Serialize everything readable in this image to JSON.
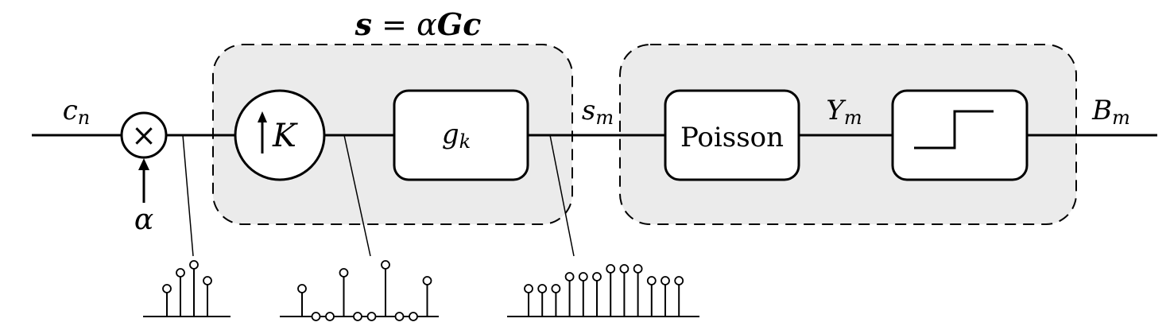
{
  "equation": {
    "lhs": "s",
    "eq": " = ",
    "alpha": "α",
    "G": "G",
    "c": "c"
  },
  "signals": {
    "input": {
      "base": "c",
      "sub": "n"
    },
    "gain": "α",
    "s_m": {
      "base": "s",
      "sub": "m"
    },
    "y_m": {
      "base": "Y",
      "sub": "m"
    },
    "output": {
      "base": "B",
      "sub": "m"
    }
  },
  "blocks": {
    "multiplier_symbol": "×",
    "upsampler": "K",
    "filter": {
      "base": "g",
      "sub": "k"
    },
    "poisson": "Poisson",
    "threshold_icon": "step-icon"
  },
  "stem_plots": {
    "after_gain": [
      0.35,
      0.55,
      0.65,
      0.45
    ],
    "after_upsample": [
      0.35,
      0,
      0,
      0.55,
      0,
      0,
      0.65,
      0,
      0,
      0.45
    ],
    "after_filter": [
      0.35,
      0.35,
      0.35,
      0.5,
      0.5,
      0.5,
      0.6,
      0.6,
      0.6,
      0.45,
      0.45,
      0.45
    ]
  },
  "colors": {
    "line": "#000000",
    "group_fill": "#ebebeb",
    "block_fill": "#ffffff"
  }
}
